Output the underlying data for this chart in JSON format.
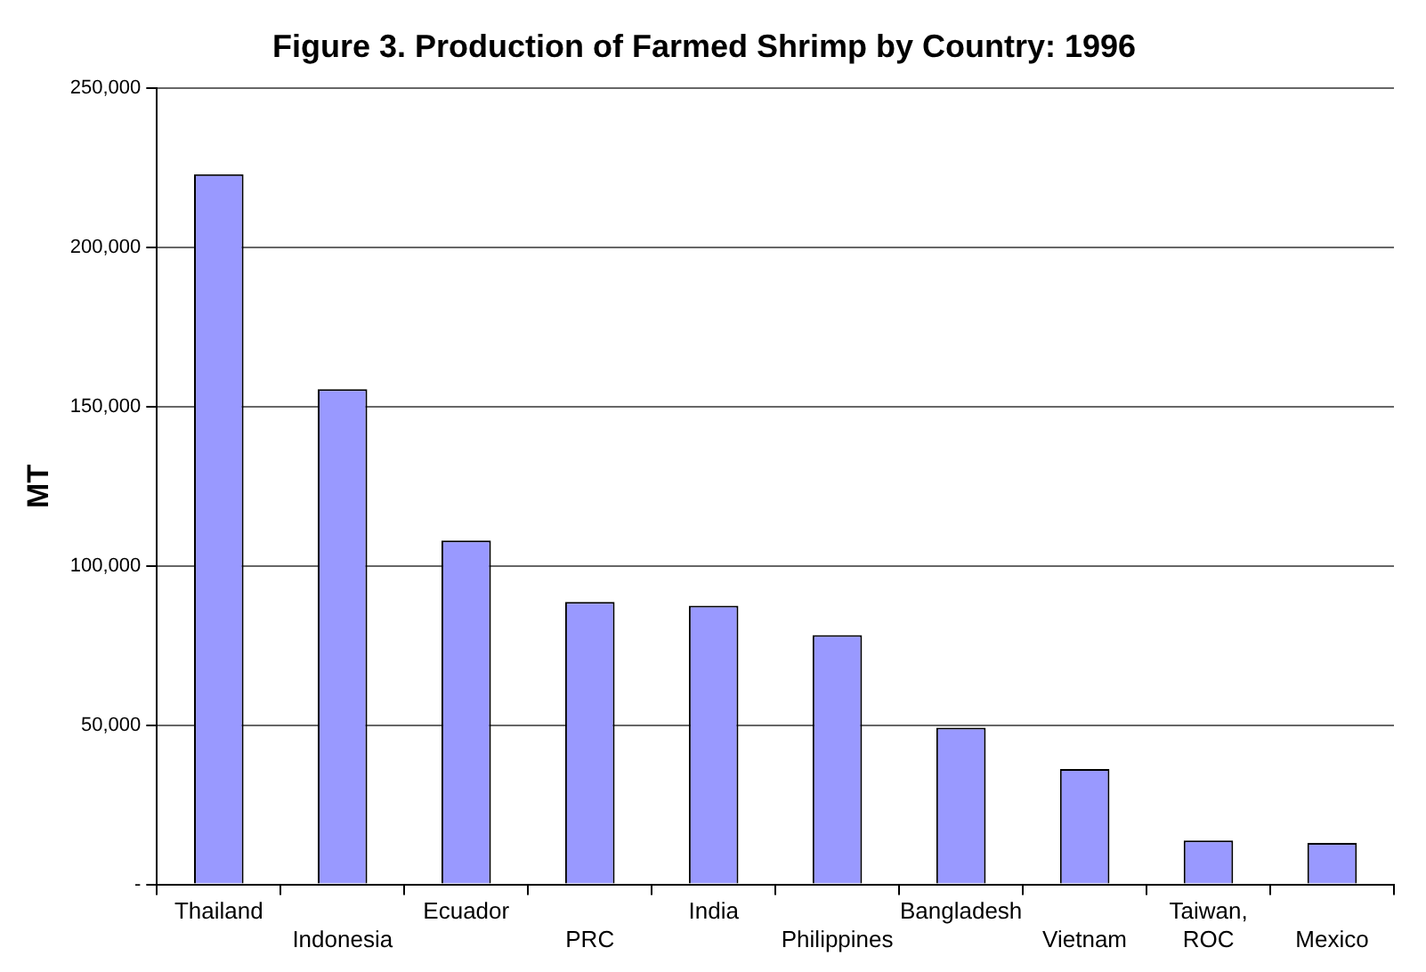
{
  "chart_data": {
    "type": "bar",
    "title": "Figure 3. Production of Farmed Shrimp by Country: 1996",
    "ylabel": "MT",
    "categories": [
      "Thailand",
      "Indonesia",
      "Ecuador",
      "PRC",
      "India",
      "Philippines",
      "Bangladesh",
      "Vietnam",
      "Taiwan, ROC",
      "Mexico"
    ],
    "values": [
      223000,
      155500,
      108000,
      88700,
      87500,
      78300,
      49200,
      36200,
      13800,
      13000
    ],
    "color": "#9999ff",
    "ylim": [
      0,
      250000
    ],
    "yticks": [
      {
        "value": 0,
        "label": "-"
      },
      {
        "value": 50000,
        "label": "50,000"
      },
      {
        "value": 100000,
        "label": "100,000"
      },
      {
        "value": 150000,
        "label": "150,000"
      },
      {
        "value": 200000,
        "label": "200,000"
      },
      {
        "value": 250000,
        "label": "250,000"
      }
    ],
    "grid": "y",
    "legend": false
  }
}
